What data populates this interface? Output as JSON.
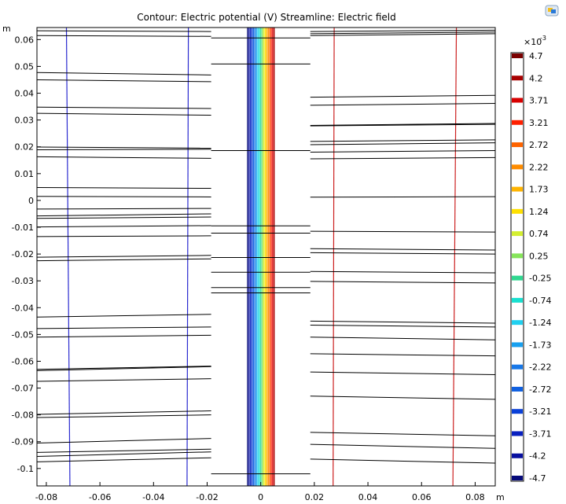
{
  "header": {
    "title": "Contour: Electric potential (V)  Streamline: Electric field"
  },
  "toolbar": {
    "logo_icon": "comsol-logo-icon"
  },
  "chart_data": {
    "type": "contour",
    "title": "Contour: Electric potential (V)  Streamline: Electric field",
    "xlabel": "m",
    "ylabel": "m",
    "xlim": [
      -0.0835,
      0.0875
    ],
    "ylim": [
      -0.1065,
      0.0645
    ],
    "xticks": [
      -0.08,
      -0.06,
      -0.04,
      -0.02,
      0,
      0.02,
      0.04,
      0.06,
      0.08
    ],
    "xtick_labels": [
      "-0.08",
      "-0.06",
      "-0.04",
      "-0.02",
      "0",
      "0.02",
      "0.04",
      "0.06",
      "0.08"
    ],
    "yticks": [
      0.06,
      0.05,
      0.04,
      0.03,
      0.02,
      0.01,
      0,
      -0.01,
      -0.02,
      -0.03,
      -0.04,
      -0.05,
      -0.06,
      -0.07,
      -0.08,
      -0.09,
      -0.1
    ],
    "ytick_labels": [
      "0.06",
      "0.05",
      "0.04",
      "0.03",
      "0.02",
      "0.01",
      "0",
      "-0.01",
      "-0.02",
      "-0.03",
      "-0.04",
      "-0.05",
      "-0.06",
      "-0.07",
      "-0.08",
      "-0.09",
      "-0.1"
    ],
    "colorbar": {
      "exponent_label": "×10",
      "exponent": "-3",
      "labels": [
        "4.7",
        "4.2",
        "3.71",
        "3.21",
        "2.72",
        "2.22",
        "1.73",
        "1.24",
        "0.74",
        "0.25",
        "-0.25",
        "-0.74",
        "-1.24",
        "-1.73",
        "-2.22",
        "-2.72",
        "-3.21",
        "-3.71",
        "-4.2",
        "-4.7"
      ],
      "colors": [
        "#7a0000",
        "#a80000",
        "#d80000",
        "#ff2000",
        "#ff6400",
        "#ff8c00",
        "#ffb400",
        "#ffe000",
        "#d4ef30",
        "#86e55a",
        "#30d890",
        "#18e0d0",
        "#20d0f0",
        "#18a0f0",
        "#1878e8",
        "#1060e0",
        "#0a40d8",
        "#0820c0",
        "#0810a0",
        "#060a7a"
      ]
    },
    "contour_levels_x": [
      -0.0049,
      -0.00435,
      -0.0038,
      -0.00325,
      -0.0027,
      -0.00215,
      -0.0016,
      -0.00105,
      -0.0005,
      5e-05,
      0.0006,
      0.00115,
      0.0017,
      0.00225,
      0.0028,
      0.00335,
      0.0039,
      0.00445,
      0.005
    ],
    "side_contours": [
      {
        "x_top": -0.0725,
        "x_bottom": -0.0712,
        "color": "#2a2ad0"
      },
      {
        "x_top": -0.027,
        "x_bottom": -0.0275,
        "color": "#2a2ad0"
      },
      {
        "x_top": 0.0274,
        "x_bottom": 0.027,
        "color": "#cc2020"
      },
      {
        "x_top": 0.073,
        "x_bottom": 0.0717,
        "color": "#cc2020"
      }
    ],
    "streamlines": [
      {
        "x": [
          -0.0835,
          -0.0185
        ],
        "y": [
          0.0633,
          0.063
        ]
      },
      {
        "x": [
          -0.0835,
          -0.0185
        ],
        "y": [
          0.0615,
          0.0612
        ]
      },
      {
        "x": [
          -0.0835,
          -0.0185
        ],
        "y": [
          0.0477,
          0.0468
        ]
      },
      {
        "x": [
          -0.0835,
          -0.0185
        ],
        "y": [
          0.045,
          0.0443
        ]
      },
      {
        "x": [
          -0.0835,
          -0.0185
        ],
        "y": [
          0.0348,
          0.0343
        ]
      },
      {
        "x": [
          -0.0835,
          -0.0185
        ],
        "y": [
          0.0325,
          0.0318
        ]
      },
      {
        "x": [
          -0.0835,
          -0.0185
        ],
        "y": [
          0.0199,
          0.0195
        ]
      },
      {
        "x": [
          -0.0835,
          -0.0185
        ],
        "y": [
          0.0189,
          0.0191
        ]
      },
      {
        "x": [
          -0.0835,
          -0.0185
        ],
        "y": [
          0.0163,
          0.0157
        ]
      },
      {
        "x": [
          -0.0835,
          -0.0185
        ],
        "y": [
          0.0048,
          0.0045
        ]
      },
      {
        "x": [
          -0.0835,
          -0.0185
        ],
        "y": [
          0.0015,
          0.0013
        ]
      },
      {
        "x": [
          -0.0835,
          -0.0185
        ],
        "y": [
          -0.0032,
          -0.003
        ]
      },
      {
        "x": [
          -0.0835,
          -0.0185
        ],
        "y": [
          -0.0058,
          -0.005
        ]
      },
      {
        "x": [
          -0.0835,
          -0.0185
        ],
        "y": [
          -0.0067,
          -0.0062
        ]
      },
      {
        "x": [
          -0.0835,
          -0.0185
        ],
        "y": [
          -0.0099,
          -0.0094
        ]
      },
      {
        "x": [
          -0.0835,
          -0.0185
        ],
        "y": [
          -0.0135,
          -0.0132
        ]
      },
      {
        "x": [
          -0.0835,
          -0.0185
        ],
        "y": [
          -0.0212,
          -0.0205
        ]
      },
      {
        "x": [
          -0.0835,
          -0.0185
        ],
        "y": [
          -0.0225,
          -0.0218
        ]
      },
      {
        "x": [
          -0.0835,
          -0.0185
        ],
        "y": [
          -0.0435,
          -0.0425
        ]
      },
      {
        "x": [
          -0.0835,
          -0.0185
        ],
        "y": [
          -0.0478,
          -0.0472
        ]
      },
      {
        "x": [
          -0.0835,
          -0.0185
        ],
        "y": [
          -0.051,
          -0.0503
        ]
      },
      {
        "x": [
          -0.0835,
          -0.0185
        ],
        "y": [
          -0.063,
          -0.0618
        ]
      },
      {
        "x": [
          -0.0835,
          -0.0185
        ],
        "y": [
          -0.0635,
          -0.062
        ]
      },
      {
        "x": [
          -0.0835,
          -0.0185
        ],
        "y": [
          -0.0675,
          -0.0665
        ]
      },
      {
        "x": [
          -0.0835,
          -0.0185
        ],
        "y": [
          -0.0798,
          -0.0785
        ]
      },
      {
        "x": [
          -0.0835,
          -0.0185
        ],
        "y": [
          -0.081,
          -0.08
        ]
      },
      {
        "x": [
          -0.0835,
          -0.0185
        ],
        "y": [
          -0.0905,
          -0.0888
        ]
      },
      {
        "x": [
          -0.0835,
          -0.0185
        ],
        "y": [
          -0.094,
          -0.0928
        ]
      },
      {
        "x": [
          -0.0835,
          -0.0185
        ],
        "y": [
          -0.0955,
          -0.0938
        ]
      },
      {
        "x": [
          -0.0835,
          -0.0185
        ],
        "y": [
          -0.0975,
          -0.096
        ]
      },
      {
        "x": [
          -0.0185,
          0.0185
        ],
        "y": [
          0.0606,
          0.0606
        ]
      },
      {
        "x": [
          -0.0185,
          0.0185
        ],
        "y": [
          0.0509,
          0.0509
        ]
      },
      {
        "x": [
          -0.0185,
          0.0185
        ],
        "y": [
          0.0186,
          0.0186
        ]
      },
      {
        "x": [
          -0.0185,
          0.0185
        ],
        "y": [
          -0.0095,
          -0.0095
        ]
      },
      {
        "x": [
          -0.0185,
          0.0185
        ],
        "y": [
          -0.0122,
          -0.0122
        ]
      },
      {
        "x": [
          -0.0185,
          0.0185
        ],
        "y": [
          -0.0213,
          -0.0213
        ]
      },
      {
        "x": [
          -0.0185,
          0.0185
        ],
        "y": [
          -0.0268,
          -0.0268
        ]
      },
      {
        "x": [
          -0.0185,
          0.0185
        ],
        "y": [
          -0.0325,
          -0.0325
        ]
      },
      {
        "x": [
          -0.0185,
          0.0185
        ],
        "y": [
          -0.0345,
          -0.0345
        ]
      },
      {
        "x": [
          -0.0185,
          0.0185
        ],
        "y": [
          -0.102,
          -0.102
        ]
      },
      {
        "x": [
          0.0185,
          0.0875
        ],
        "y": [
          0.063,
          0.0635
        ]
      },
      {
        "x": [
          0.0185,
          0.0875
        ],
        "y": [
          0.0622,
          0.0628
        ]
      },
      {
        "x": [
          0.0185,
          0.0875
        ],
        "y": [
          0.0615,
          0.0622
        ]
      },
      {
        "x": [
          0.0185,
          0.0875
        ],
        "y": [
          0.0385,
          0.0392
        ]
      },
      {
        "x": [
          0.0185,
          0.0875
        ],
        "y": [
          0.0355,
          0.0362
        ]
      },
      {
        "x": [
          0.0185,
          0.0875
        ],
        "y": [
          0.028,
          0.0287
        ]
      },
      {
        "x": [
          0.0185,
          0.0875
        ],
        "y": [
          0.0278,
          0.0284
        ]
      },
      {
        "x": [
          0.0185,
          0.0875
        ],
        "y": [
          0.022,
          0.0226
        ]
      },
      {
        "x": [
          0.0185,
          0.0875
        ],
        "y": [
          0.0208,
          0.0215
        ]
      },
      {
        "x": [
          0.0185,
          0.0875
        ],
        "y": [
          0.018,
          0.0186
        ]
      },
      {
        "x": [
          0.0185,
          0.0875
        ],
        "y": [
          0.0155,
          0.016
        ]
      },
      {
        "x": [
          0.0185,
          0.0875
        ],
        "y": [
          0.0012,
          0.0014
        ]
      },
      {
        "x": [
          0.0185,
          0.0875
        ],
        "y": [
          -0.0115,
          -0.0118
        ]
      },
      {
        "x": [
          0.0185,
          0.0875
        ],
        "y": [
          -0.018,
          -0.0185
        ]
      },
      {
        "x": [
          0.0185,
          0.0875
        ],
        "y": [
          -0.0195,
          -0.02
        ]
      },
      {
        "x": [
          0.0185,
          0.0875
        ],
        "y": [
          -0.0265,
          -0.027
        ]
      },
      {
        "x": [
          0.0185,
          0.0875
        ],
        "y": [
          -0.0302,
          -0.0308
        ]
      },
      {
        "x": [
          0.0185,
          0.0875
        ],
        "y": [
          -0.045,
          -0.0458
        ]
      },
      {
        "x": [
          0.0185,
          0.0875
        ],
        "y": [
          -0.0465,
          -0.0472
        ]
      },
      {
        "x": [
          0.0185,
          0.0875
        ],
        "y": [
          -0.051,
          -0.052
        ]
      },
      {
        "x": [
          0.0185,
          0.0875
        ],
        "y": [
          -0.0572,
          -0.058
        ]
      },
      {
        "x": [
          0.0185,
          0.0875
        ],
        "y": [
          -0.064,
          -0.065
        ]
      },
      {
        "x": [
          0.0185,
          0.0875
        ],
        "y": [
          -0.073,
          -0.0742
        ]
      },
      {
        "x": [
          0.0185,
          0.0875
        ],
        "y": [
          -0.0865,
          -0.0878
        ]
      },
      {
        "x": [
          0.0185,
          0.0875
        ],
        "y": [
          -0.091,
          -0.0925
        ]
      },
      {
        "x": [
          0.0185,
          0.0875
        ],
        "y": [
          -0.0965,
          -0.098
        ]
      }
    ]
  }
}
